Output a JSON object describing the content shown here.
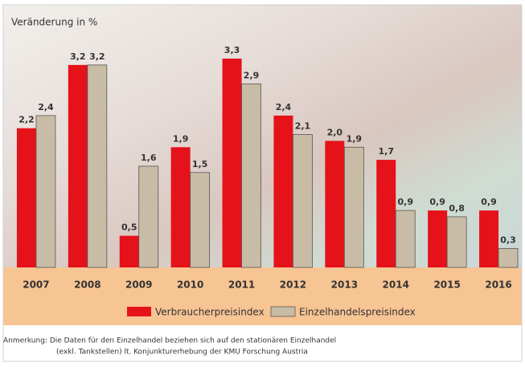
{
  "chart_data": {
    "type": "bar",
    "title": "Veränderung in %",
    "categories": [
      "2007",
      "2008",
      "2009",
      "2010",
      "2011",
      "2012",
      "2013",
      "2014",
      "2015",
      "2016"
    ],
    "series": [
      {
        "name": "Verbraucherpreisindex",
        "color": "#e5121a",
        "values": [
          2.2,
          3.2,
          0.5,
          1.9,
          3.3,
          2.4,
          2.0,
          1.7,
          0.9,
          0.9
        ],
        "value_labels": [
          "2,2",
          "3,2",
          "0,5",
          "1,9",
          "3,3",
          "2,4",
          "2,0",
          "1,7",
          "0,9",
          "0,9"
        ]
      },
      {
        "name": "Einzelhandelspreisindex",
        "color": "#c9bca6",
        "values": [
          2.4,
          3.2,
          1.6,
          1.5,
          2.9,
          2.1,
          1.9,
          0.9,
          0.8,
          0.3
        ],
        "value_labels": [
          "2,4",
          "3,2",
          "1,6",
          "1,5",
          "2,9",
          "2,1",
          "1,9",
          "0,9",
          "0,8",
          "0,3"
        ]
      }
    ],
    "notes": [
      "Anmerkung: Die Daten für den Einzelhandel beziehen sich auf den stationären Einzelhandel",
      "(exkl. Tankstellen) lt. Konjunkturerhebung der KMU Forschung Austria"
    ]
  }
}
